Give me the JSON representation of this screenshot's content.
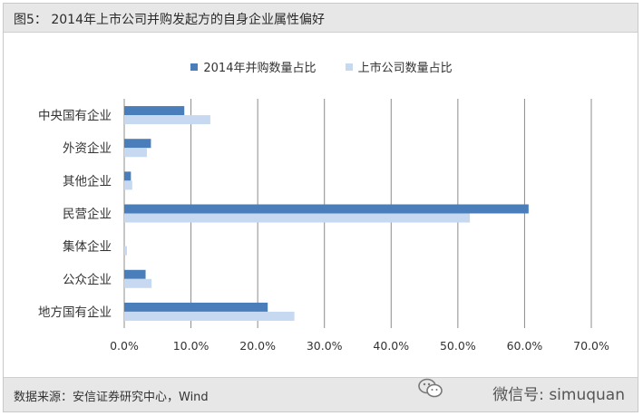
{
  "header": {
    "title": "图5： 2014年上市公司并购发起方的自身企业属性偏好"
  },
  "footer": {
    "source": "数据来源：安信证券研究中心，Wind",
    "watermark": "微信号: simuquan"
  },
  "colors": {
    "series_dark": "#4a7ebb",
    "series_light": "#c6d9f1",
    "grid": "#8c8c8c",
    "bar_bg": "#e7e7e7"
  },
  "icons": {
    "watermark_logo": "wechat-logo-icon"
  },
  "chart_data": {
    "type": "bar",
    "orientation": "horizontal",
    "categories": [
      "中央国有企业",
      "外资企业",
      "其他企业",
      "民营企业",
      "集体企业",
      "公众企业",
      "地方国有企业"
    ],
    "series": [
      {
        "name": "2014年并购数量占比",
        "color": "#4a7ebb",
        "values": [
          9.0,
          4.0,
          1.0,
          60.6,
          0.0,
          3.2,
          21.5
        ]
      },
      {
        "name": "上市公司数量占比",
        "color": "#c6d9f1",
        "values": [
          12.9,
          3.4,
          1.2,
          51.8,
          0.4,
          4.1,
          25.5
        ]
      }
    ],
    "xlim": [
      0,
      70
    ],
    "xticks": [
      "0.0%",
      "10.0%",
      "20.0%",
      "30.0%",
      "40.0%",
      "50.0%",
      "60.0%",
      "70.0%"
    ],
    "grid": true,
    "legend_position": "top"
  }
}
